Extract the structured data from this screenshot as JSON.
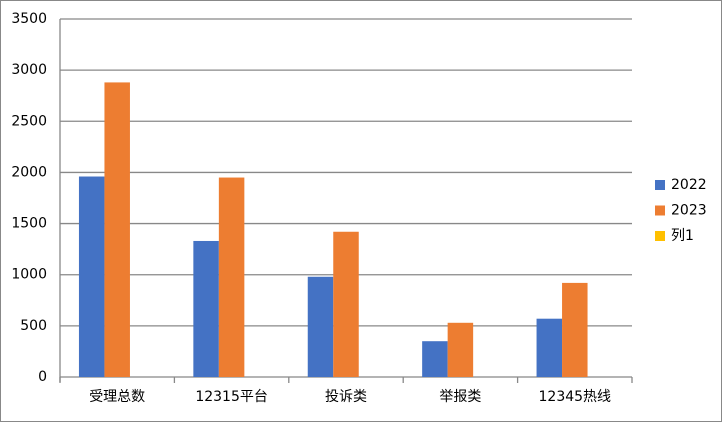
{
  "chart_data": {
    "type": "bar",
    "categories": [
      "受理总数",
      "12315平台",
      "投诉类",
      "举报类",
      "12345热线"
    ],
    "series": [
      {
        "name": "2022",
        "color": "#4472c4",
        "values": [
          1960,
          1330,
          980,
          350,
          570
        ]
      },
      {
        "name": "2023",
        "color": "#ed7d31",
        "values": [
          2880,
          1950,
          1420,
          530,
          920
        ]
      },
      {
        "name": "列1",
        "color": "#ffc000",
        "values": [
          null,
          null,
          null,
          null,
          null
        ]
      }
    ],
    "ylim": [
      0,
      3500
    ],
    "yticks": [
      0,
      500,
      1000,
      1500,
      2000,
      2500,
      3000,
      3500
    ],
    "grid": true,
    "legend": "right"
  }
}
